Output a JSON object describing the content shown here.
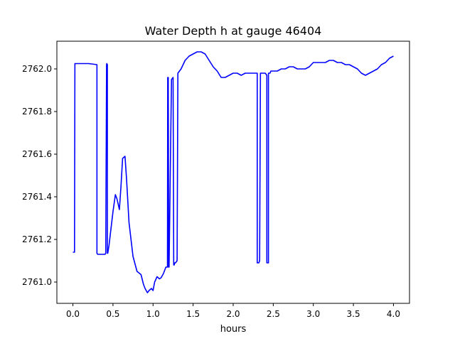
{
  "chart_data": {
    "type": "line",
    "title": "Water Depth h at gauge 46404",
    "xlabel": "hours",
    "ylabel": "",
    "xlim": [
      -0.2,
      4.2
    ],
    "ylim": [
      2760.9,
      2762.13
    ],
    "xticks": [
      0.0,
      0.5,
      1.0,
      1.5,
      2.0,
      2.5,
      3.0,
      3.5,
      4.0
    ],
    "xtick_labels": [
      "0.0",
      "0.5",
      "1.0",
      "1.5",
      "2.0",
      "2.5",
      "3.0",
      "3.5",
      "4.0"
    ],
    "yticks": [
      2761.0,
      2761.2,
      2761.4,
      2761.6,
      2761.8,
      2762.0
    ],
    "ytick_labels": [
      "2761.0",
      "2761.2",
      "2761.4",
      "2761.6",
      "2761.8",
      "2762.0"
    ],
    "grid": false,
    "legend": "none",
    "series": [
      {
        "color": "#0000ff",
        "x": [
          0.0,
          0.02,
          0.025,
          0.1,
          0.2,
          0.3,
          0.3,
          0.31,
          0.35,
          0.4,
          0.41,
          0.42,
          0.423,
          0.43,
          0.43,
          0.435,
          0.45,
          0.5,
          0.53,
          0.55,
          0.58,
          0.6,
          0.62,
          0.65,
          0.67,
          0.7,
          0.75,
          0.8,
          0.85,
          0.88,
          0.9,
          0.93,
          0.95,
          0.98,
          1.0,
          1.02,
          1.05,
          1.08,
          1.1,
          1.13,
          1.16,
          1.18,
          1.183,
          1.19,
          1.195,
          1.2,
          1.23,
          1.25,
          1.258,
          1.265,
          1.27,
          1.28,
          1.3,
          1.31,
          1.33,
          1.35,
          1.4,
          1.45,
          1.5,
          1.55,
          1.6,
          1.65,
          1.7,
          1.75,
          1.8,
          1.85,
          1.9,
          1.95,
          2.0,
          2.05,
          2.1,
          2.15,
          2.2,
          2.25,
          2.3,
          2.3,
          2.32,
          2.33,
          2.34,
          2.4,
          2.42,
          2.42,
          2.435,
          2.44,
          2.44,
          2.45,
          2.46,
          2.47,
          2.5,
          2.55,
          2.6,
          2.65,
          2.7,
          2.75,
          2.8,
          2.85,
          2.9,
          2.95,
          3.0,
          3.05,
          3.1,
          3.15,
          3.2,
          3.25,
          3.3,
          3.35,
          3.4,
          3.45,
          3.5,
          3.55,
          3.6,
          3.65,
          3.7,
          3.75,
          3.8,
          3.85,
          3.9,
          3.95,
          4.0
        ],
        "y": [
          2761.14,
          2761.14,
          2762.025,
          2762.025,
          2762.025,
          2762.02,
          2761.135,
          2761.13,
          2761.13,
          2761.13,
          2761.135,
          2762.02,
          2762.025,
          2762.02,
          2761.135,
          2761.135,
          2761.17,
          2761.33,
          2761.41,
          2761.39,
          2761.34,
          2761.45,
          2761.58,
          2761.59,
          2761.48,
          2761.28,
          2761.12,
          2761.05,
          2761.035,
          2760.99,
          2760.97,
          2760.95,
          2760.96,
          2760.97,
          2760.96,
          2761.0,
          2761.025,
          2761.015,
          2761.02,
          2761.04,
          2761.07,
          2761.07,
          2761.96,
          2761.96,
          2761.07,
          2761.07,
          2761.95,
          2761.96,
          2761.08,
          2761.08,
          2761.09,
          2761.09,
          2761.1,
          2761.98,
          2761.99,
          2762.0,
          2762.04,
          2762.06,
          2762.07,
          2762.08,
          2762.08,
          2762.07,
          2762.04,
          2762.01,
          2761.99,
          2761.96,
          2761.96,
          2761.97,
          2761.98,
          2761.98,
          2761.97,
          2761.98,
          2761.98,
          2761.98,
          2761.98,
          2761.09,
          2761.09,
          2761.1,
          2761.98,
          2761.98,
          2761.97,
          2761.09,
          2761.09,
          2761.09,
          2761.98,
          2761.98,
          2761.98,
          2761.99,
          2761.99,
          2761.99,
          2762.0,
          2762.0,
          2762.01,
          2762.01,
          2762.0,
          2762.0,
          2762.0,
          2762.01,
          2762.03,
          2762.03,
          2762.03,
          2762.03,
          2762.04,
          2762.04,
          2762.03,
          2762.03,
          2762.02,
          2762.02,
          2762.01,
          2762.0,
          2761.98,
          2761.97,
          2761.98,
          2761.99,
          2762.0,
          2762.02,
          2762.03,
          2762.05,
          2762.06
        ]
      }
    ]
  }
}
